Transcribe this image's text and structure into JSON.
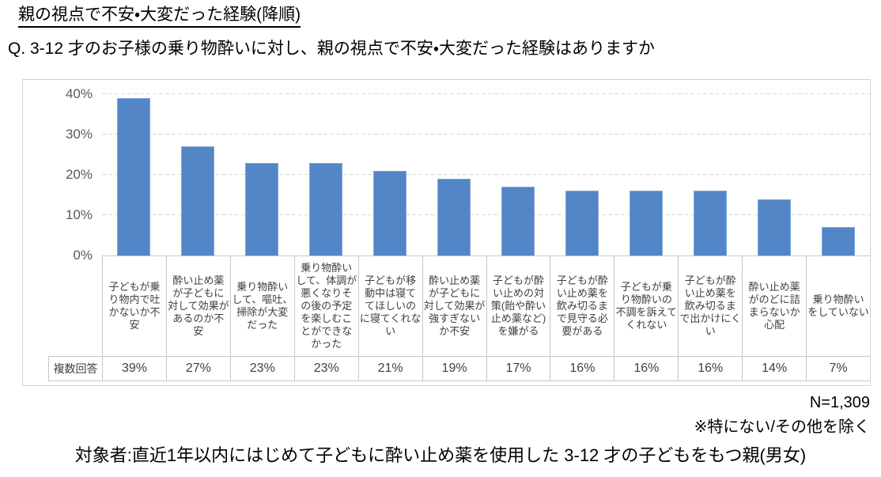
{
  "page": {
    "title": "親の視点で不安・大変だった経験(降順)",
    "question": "Q. 3-12 才のお子様の乗り物酔いに対し、親の視点で不安・大変だった経験はありますか",
    "sample_size": "N=1,309",
    "exclusion_note": "※特にない/その他を除く",
    "target_note": "対象者:直近1年以内にはじめて子どもに酔い止め薬を使用した 3-12 才の子どもをもつ親(男女)"
  },
  "chart_data": {
    "type": "bar",
    "title": "親の視点で不安・大変だった経験(降順)",
    "xlabel": "",
    "ylabel": "",
    "ylim": [
      0,
      40
    ],
    "yticks": [
      "0%",
      "10%",
      "20%",
      "30%",
      "40%"
    ],
    "grid": "horizontal-dashed",
    "legend_position": "none",
    "bar_color": "#5286c6",
    "row_header": "複数回答",
    "categories": [
      "子どもが乗り物内で吐かないか不安",
      "酔い止め薬が子どもに対して効果があるのか不安",
      "乗り物酔いして、嘔吐、掃除が大変だった",
      "乗り物酔いして、体調が悪くなりその後の予定を楽しむことができなかった",
      "子どもが移動中は寝ててほしいのに寝てくれない",
      "酔い止め薬が子どもに対して効果が強すぎないか不安",
      "子どもが酔い止めの対策(飴や酔い止め薬など)を嫌がる",
      "子どもが酔い止め薬を飲み切るまで見守る必要がある",
      "子どもが乗り物酔いの不調を訴えてくれない",
      "子どもが酔い止め薬を飲み切るまで出かけにくい",
      "酔い止め薬がのどに詰まらないか心配",
      "乗り物酔いをしていない"
    ],
    "values": [
      39,
      27,
      23,
      23,
      21,
      19,
      17,
      16,
      16,
      16,
      14,
      7
    ],
    "value_labels": [
      "39%",
      "27%",
      "23%",
      "23%",
      "21%",
      "19%",
      "17%",
      "16%",
      "16%",
      "16%",
      "14%",
      "7%"
    ]
  }
}
